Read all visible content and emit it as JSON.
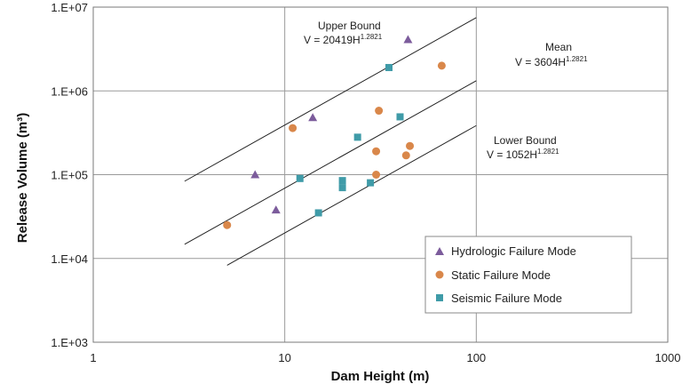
{
  "colors": {
    "hydrologic": "#7c5c9c",
    "static": "#d9874a",
    "seismic": "#3f9ba8",
    "line": "#222222",
    "grid": "#9a9a9a"
  },
  "chart_data": {
    "type": "scatter",
    "xscale": "log",
    "yscale": "log",
    "xlabel": "Dam Height (m)",
    "ylabel": "Release Volume (m³)",
    "xlim": [
      1,
      1000
    ],
    "ylim": [
      1000,
      10000000
    ],
    "x_ticks": [
      {
        "value": 1,
        "label": "1"
      },
      {
        "value": 10,
        "label": "10"
      },
      {
        "value": 100,
        "label": "100"
      },
      {
        "value": 1000,
        "label": "1000"
      }
    ],
    "y_ticks": [
      {
        "value": 1000,
        "label": "1.E+03"
      },
      {
        "value": 10000,
        "label": "1.E+04"
      },
      {
        "value": 100000,
        "label": "1.E+05"
      },
      {
        "value": 1000000,
        "label": "1.E+06"
      },
      {
        "value": 10000000,
        "label": "1.E+07"
      }
    ],
    "grid": true,
    "series": [
      {
        "name": "Hydrologic Failure Mode",
        "marker": "triangle",
        "points": [
          [
            7,
            100000
          ],
          [
            9,
            38000
          ],
          [
            14,
            480000
          ],
          [
            44,
            4100000
          ]
        ]
      },
      {
        "name": "Static Failure Mode",
        "marker": "circle",
        "points": [
          [
            5,
            25000
          ],
          [
            11,
            360000
          ],
          [
            30,
            190000
          ],
          [
            30,
            100000
          ],
          [
            31,
            580000
          ],
          [
            43,
            170000
          ],
          [
            45,
            220000
          ],
          [
            66,
            2000000
          ]
        ]
      },
      {
        "name": "Seismic Failure Mode",
        "marker": "square",
        "points": [
          [
            12,
            90000
          ],
          [
            15,
            35000
          ],
          [
            20,
            85000
          ],
          [
            20,
            70000
          ],
          [
            24,
            280000
          ],
          [
            28,
            80000
          ],
          [
            35,
            1900000
          ],
          [
            40,
            490000
          ]
        ]
      }
    ],
    "lines": [
      {
        "name": "Upper Bound",
        "coef": 20419,
        "exp": 1.2821,
        "x_range": [
          3,
          100
        ],
        "label": "Upper Bound",
        "eq_prefix": "V = 20419H",
        "eq_exp": "1.2821"
      },
      {
        "name": "Mean",
        "coef": 3604,
        "exp": 1.2821,
        "x_range": [
          3,
          100
        ],
        "label": "Mean",
        "eq_prefix": "V = 3604H",
        "eq_exp": "1.2821"
      },
      {
        "name": "Lower Bound",
        "coef": 1052,
        "exp": 1.2821,
        "x_range": [
          5,
          100
        ],
        "label": "Lower Bound",
        "eq_prefix": "V = 1052H",
        "eq_exp": "1.2821"
      }
    ],
    "legend": {
      "position": "lower-right",
      "entries": [
        "Hydrologic Failure Mode",
        "Static Failure Mode",
        "Seismic Failure Mode"
      ]
    }
  }
}
